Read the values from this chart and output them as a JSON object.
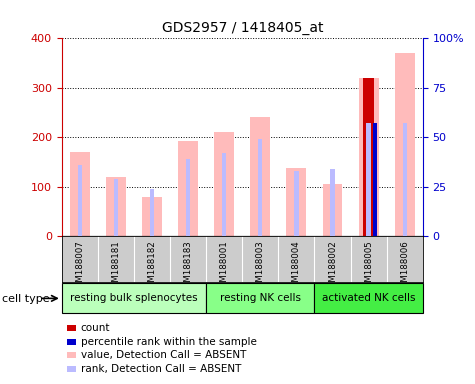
{
  "title": "GDS2957 / 1418405_at",
  "samples": [
    "GSM188007",
    "GSM188181",
    "GSM188182",
    "GSM188183",
    "GSM188001",
    "GSM188003",
    "GSM188004",
    "GSM188002",
    "GSM188005",
    "GSM188006"
  ],
  "cell_groups": [
    {
      "label": "resting bulk splenocytes",
      "start": 0,
      "end": 4,
      "color": "#bbffbb"
    },
    {
      "label": "resting NK cells",
      "start": 4,
      "end": 7,
      "color": "#88ff88"
    },
    {
      "label": "activated NK cells",
      "start": 7,
      "end": 10,
      "color": "#44ee44"
    }
  ],
  "value_bars": [
    170,
    120,
    80,
    192,
    210,
    242,
    138,
    105,
    320,
    370
  ],
  "rank_bars_pct": [
    36,
    29,
    24,
    39,
    42,
    49,
    33,
    34,
    57,
    57
  ],
  "value_bar_color": "#ffbbbb",
  "rank_bar_color": "#bbbbff",
  "count_bar_color": "#cc0000",
  "percentile_bar_color": "#0000cc",
  "count_present": [
    false,
    false,
    false,
    false,
    false,
    false,
    false,
    false,
    true,
    false
  ],
  "count_values": [
    320,
    0
  ],
  "count_index": 8,
  "percentile_present_index": 8,
  "percentile_value_pct": 57,
  "ylim_left": [
    0,
    400
  ],
  "ylim_right": [
    0,
    100
  ],
  "yticks_left": [
    0,
    100,
    200,
    300,
    400
  ],
  "yticks_right": [
    0,
    25,
    50,
    75,
    100
  ],
  "yticklabels_right": [
    "0",
    "25",
    "50",
    "75",
    "100%"
  ],
  "left_axis_color": "#cc0000",
  "right_axis_color": "#0000cc",
  "cell_type_label": "cell type",
  "legend_items": [
    {
      "color": "#cc0000",
      "label": "count"
    },
    {
      "color": "#0000cc",
      "label": "percentile rank within the sample"
    },
    {
      "color": "#ffbbbb",
      "label": "value, Detection Call = ABSENT"
    },
    {
      "color": "#bbbbff",
      "label": "rank, Detection Call = ABSENT"
    }
  ],
  "bg_color": "#ffffff",
  "sample_bg_color": "#cccccc"
}
